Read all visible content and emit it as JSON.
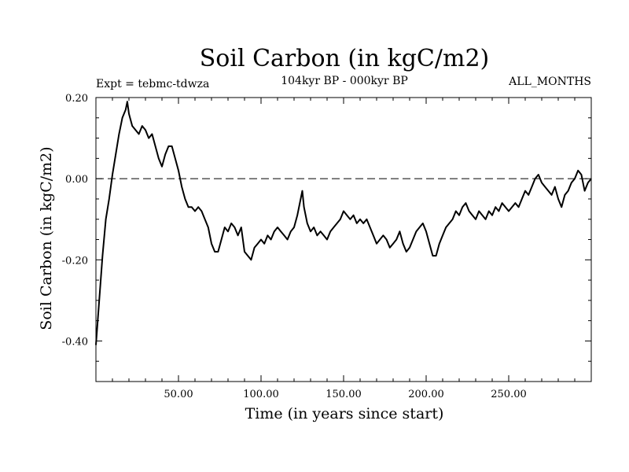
{
  "chart_data": {
    "type": "line",
    "title": "Soil Carbon (in kgC/m2)",
    "subtitle": "104kyr BP - 000kyr BP",
    "experiment_label": "Expt = tebmc-tdwza",
    "months_label": "ALL_MONTHS",
    "xlabel": "Time (in years since start)",
    "ylabel": "Soil Carbon (in kgC/m2)",
    "xlim": [
      0,
      300
    ],
    "ylim": [
      -0.5,
      0.2
    ],
    "x_ticks": [
      {
        "value": 50,
        "label": "50.00"
      },
      {
        "value": 100,
        "label": "100.00"
      },
      {
        "value": 150,
        "label": "150.00"
      },
      {
        "value": 200,
        "label": "200.00"
      },
      {
        "value": 250,
        "label": "250.00"
      }
    ],
    "y_ticks": [
      {
        "value": 0.2,
        "label": "0.20"
      },
      {
        "value": 0.0,
        "label": "0.00"
      },
      {
        "value": -0.2,
        "label": "-0.20"
      },
      {
        "value": -0.4,
        "label": "-0.40"
      }
    ],
    "zero_line": 0.0,
    "series": [
      {
        "name": "Soil Carbon",
        "color": "#000000",
        "x": [
          0,
          2,
          4,
          6,
          8,
          10,
          12,
          14,
          16,
          18,
          19,
          20,
          22,
          24,
          26,
          28,
          30,
          32,
          34,
          36,
          38,
          40,
          42,
          44,
          46,
          48,
          50,
          52,
          54,
          56,
          58,
          60,
          62,
          64,
          66,
          68,
          70,
          72,
          74,
          76,
          78,
          80,
          82,
          84,
          86,
          88,
          90,
          92,
          94,
          96,
          98,
          100,
          102,
          104,
          106,
          108,
          110,
          112,
          114,
          116,
          118,
          120,
          122,
          124,
          125,
          126,
          128,
          130,
          132,
          134,
          136,
          138,
          140,
          142,
          144,
          146,
          148,
          150,
          152,
          154,
          156,
          158,
          160,
          162,
          164,
          166,
          168,
          170,
          172,
          174,
          176,
          178,
          180,
          182,
          184,
          186,
          188,
          190,
          192,
          194,
          196,
          198,
          200,
          202,
          204,
          206,
          208,
          210,
          212,
          214,
          216,
          218,
          220,
          222,
          224,
          226,
          228,
          230,
          232,
          234,
          236,
          238,
          240,
          242,
          244,
          246,
          248,
          250,
          252,
          254,
          256,
          258,
          260,
          262,
          264,
          266,
          268,
          270,
          272,
          274,
          276,
          278,
          280,
          282,
          284,
          286,
          288,
          290,
          292,
          294,
          296,
          298,
          300
        ],
        "values": [
          -0.41,
          -0.3,
          -0.19,
          -0.1,
          -0.05,
          0.01,
          0.06,
          0.11,
          0.15,
          0.17,
          0.19,
          0.16,
          0.13,
          0.12,
          0.11,
          0.13,
          0.12,
          0.1,
          0.11,
          0.08,
          0.05,
          0.03,
          0.06,
          0.08,
          0.08,
          0.05,
          0.02,
          -0.02,
          -0.05,
          -0.07,
          -0.07,
          -0.08,
          -0.07,
          -0.08,
          -0.1,
          -0.12,
          -0.16,
          -0.18,
          -0.18,
          -0.15,
          -0.12,
          -0.13,
          -0.11,
          -0.12,
          -0.14,
          -0.12,
          -0.18,
          -0.19,
          -0.2,
          -0.17,
          -0.16,
          -0.15,
          -0.16,
          -0.14,
          -0.15,
          -0.13,
          -0.12,
          -0.13,
          -0.14,
          -0.15,
          -0.13,
          -0.12,
          -0.09,
          -0.05,
          -0.03,
          -0.07,
          -0.11,
          -0.13,
          -0.12,
          -0.14,
          -0.13,
          -0.14,
          -0.15,
          -0.13,
          -0.12,
          -0.11,
          -0.1,
          -0.08,
          -0.09,
          -0.1,
          -0.09,
          -0.11,
          -0.1,
          -0.11,
          -0.1,
          -0.12,
          -0.14,
          -0.16,
          -0.15,
          -0.14,
          -0.15,
          -0.17,
          -0.16,
          -0.15,
          -0.13,
          -0.16,
          -0.18,
          -0.17,
          -0.15,
          -0.13,
          -0.12,
          -0.11,
          -0.13,
          -0.16,
          -0.19,
          -0.19,
          -0.16,
          -0.14,
          -0.12,
          -0.11,
          -0.1,
          -0.08,
          -0.09,
          -0.07,
          -0.06,
          -0.08,
          -0.09,
          -0.1,
          -0.08,
          -0.09,
          -0.1,
          -0.08,
          -0.09,
          -0.07,
          -0.08,
          -0.06,
          -0.07,
          -0.08,
          -0.07,
          -0.06,
          -0.07,
          -0.05,
          -0.03,
          -0.04,
          -0.02,
          0.0,
          0.01,
          -0.01,
          -0.02,
          -0.03,
          -0.04,
          -0.02,
          -0.05,
          -0.07,
          -0.04,
          -0.03,
          -0.01,
          0.0,
          0.02,
          0.01,
          -0.03,
          -0.01,
          0.0
        ]
      }
    ]
  }
}
